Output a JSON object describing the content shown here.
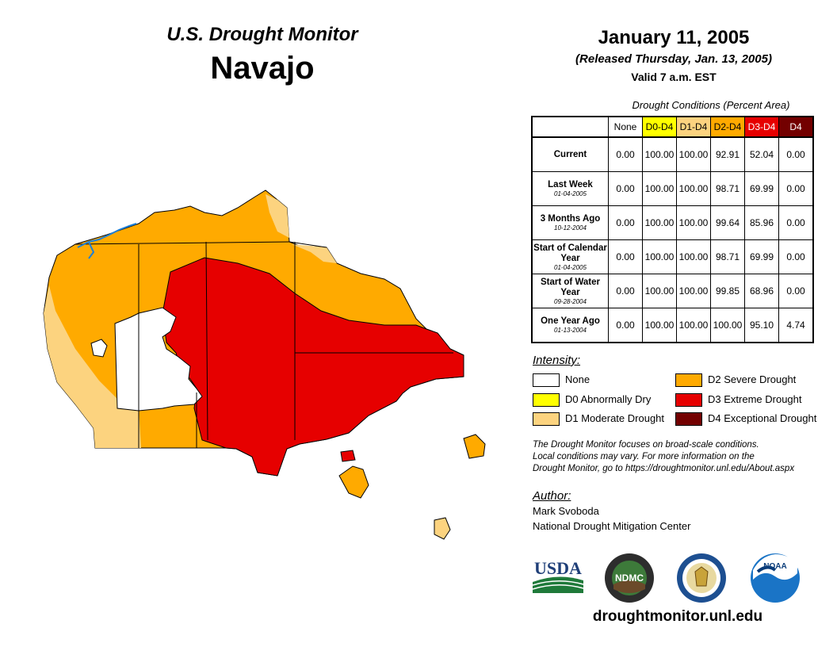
{
  "header": {
    "subtitle": "U.S. Drought Monitor",
    "region": "Navajo",
    "date": "January 11, 2005",
    "released": "(Released Thursday, Jan. 13, 2005)",
    "valid": "Valid 7 a.m. EST"
  },
  "table": {
    "caption": "Drought Conditions (Percent Area)",
    "columns": [
      "None",
      "D0-D4",
      "D1-D4",
      "D2-D4",
      "D3-D4",
      "D4"
    ],
    "rows": [
      {
        "label": "Current",
        "date": "",
        "values": [
          "0.00",
          "100.00",
          "100.00",
          "92.91",
          "52.04",
          "0.00"
        ]
      },
      {
        "label": "Last Week",
        "date": "01-04-2005",
        "values": [
          "0.00",
          "100.00",
          "100.00",
          "98.71",
          "69.99",
          "0.00"
        ]
      },
      {
        "label": "3 Months Ago",
        "date": "10-12-2004",
        "values": [
          "0.00",
          "100.00",
          "100.00",
          "99.64",
          "85.96",
          "0.00"
        ]
      },
      {
        "label": "Start of Calendar Year",
        "date": "01-04-2005",
        "values": [
          "0.00",
          "100.00",
          "100.00",
          "98.71",
          "69.99",
          "0.00"
        ]
      },
      {
        "label": "Start of Water Year",
        "date": "09-28-2004",
        "values": [
          "0.00",
          "100.00",
          "100.00",
          "99.85",
          "68.96",
          "0.00"
        ]
      },
      {
        "label": "One Year Ago",
        "date": "01-13-2004",
        "values": [
          "0.00",
          "100.00",
          "100.00",
          "100.00",
          "95.10",
          "4.74"
        ]
      }
    ]
  },
  "legend": {
    "title": "Intensity:",
    "items": [
      {
        "label": "None",
        "color": "#ffffff"
      },
      {
        "label": "D0 Abnormally Dry",
        "color": "#ffff00"
      },
      {
        "label": "D1 Moderate Drought",
        "color": "#fcd37f"
      },
      {
        "label": "D2 Severe Drought",
        "color": "#ffaa00"
      },
      {
        "label": "D3 Extreme Drought",
        "color": "#e60000"
      },
      {
        "label": "D4 Exceptional Drought",
        "color": "#730000"
      }
    ]
  },
  "note": {
    "line1": "The Drought Monitor focuses on broad-scale conditions.",
    "line2": "Local conditions may vary. For more information on the",
    "line3": "Drought Monitor, go to https://droughtmonitor.unl.edu/About.aspx"
  },
  "author": {
    "title": "Author:",
    "name": "Mark Svoboda",
    "org": "National Drought Mitigation Center"
  },
  "logos": {
    "usda": "USDA",
    "ndmc": "NDMC",
    "noaa": "NOAA"
  },
  "website": "droughtmonitor.unl.edu",
  "colors": {
    "none": "#ffffff",
    "d0": "#ffff00",
    "d1": "#fcd37f",
    "d2": "#ffaa00",
    "d3": "#e60000",
    "d4": "#730000",
    "water": "#1e7fd6"
  }
}
